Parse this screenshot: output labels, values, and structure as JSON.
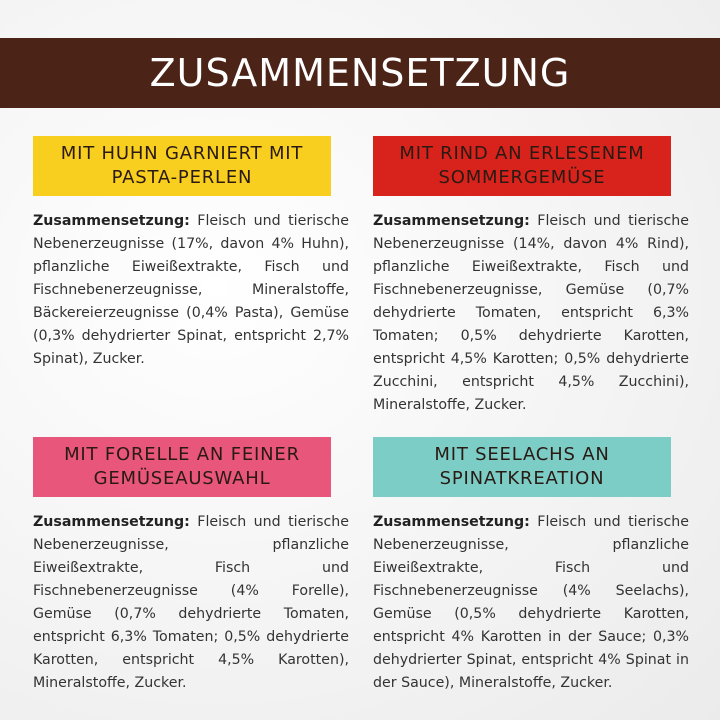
{
  "header": {
    "title": "ZUSAMMENSETZUNG"
  },
  "sections": [
    {
      "heading": [
        "MIT HUHN GARNIERT MIT",
        "PASTA-PERLEN"
      ],
      "label": "Zusammensetzung:",
      "text": "Fleisch und tierische Nebenerzeugnisse (17%, davon 4% Huhn), pflanzliche Eiweißextrakte, Fisch und Fischnebenerzeugnisse, Mineralstoffe, Bäckereierzeugnisse (0,4% Pasta), Gemüse (0,3% dehydrierter Spinat, entspricht 2,7% Spinat), Zucker."
    },
    {
      "heading": [
        "MIT RIND AN ERLESENEM",
        "SOMMERGEMÜSE"
      ],
      "label": "Zusammensetzung:",
      "text": "Fleisch und tierische Nebenerzeugnisse (14%, davon 4% Rind), pflanzliche Eiweißextrakte, Fisch und Fischnebenerzeugnisse, Gemüse (0,7% dehydrierte Tomaten, entspricht 6,3% Tomaten; 0,5% dehydrierte Karotten, entspricht 4,5% Karotten; 0,5% dehydrierte Zucchini, entspricht 4,5% Zucchini), Mineralstoffe, Zucker."
    },
    {
      "heading": [
        "MIT FORELLE AN FEINER",
        "GEMÜSEAUSWAHL"
      ],
      "label": "Zusammensetzung:",
      "text": "Fleisch und tierische Nebenerzeugnisse, pflanzliche Eiweißextrakte, Fisch und Fischnebenerzeugnisse (4% Forelle), Gemüse (0,7% dehydrierte Tomaten, entspricht 6,3% Tomaten; 0,5% dehydrierte Karotten, entspricht 4,5% Karotten), Mineralstoffe, Zucker."
    },
    {
      "heading": [
        "MIT SEELACHS AN",
        "SPINATKREATION"
      ],
      "label": "Zusammensetzung:",
      "text": "Fleisch und tierische Nebenerzeugnisse, pflanzliche Eiweißextrakte, Fisch und Fischnebenerzeugnisse (4% Seelachs), Gemüse (0,5% dehydrierte Karotten, entspricht 4% Karotten in der Sauce; 0,3% dehydrierter Spinat, entspricht 4% Spinat in der Sauce), Mineralstoffe, Zucker."
    }
  ]
}
